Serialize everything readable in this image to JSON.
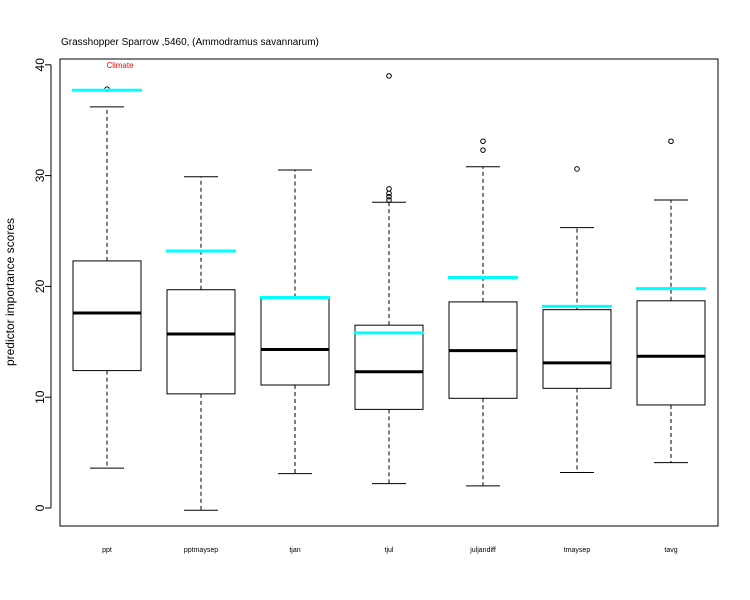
{
  "chart_data": {
    "type": "boxplot",
    "title": "Grasshopper Sparrow ,5460, (Ammodramus savannarum)",
    "xlabel": "",
    "ylabel": "predictor importance scores",
    "ylim": [
      -1.5,
      41.5
    ],
    "yticks": [
      0,
      10,
      20,
      30,
      40
    ],
    "annotation": {
      "text": "Climate",
      "category": "ppt",
      "y": 40,
      "color": "#ff0000"
    },
    "reference_color": "#00ffff",
    "grid": false,
    "categories": [
      "ppt",
      "pptmaysep",
      "tjan",
      "tjul",
      "juljandiff",
      "tmaysep",
      "tavg"
    ],
    "boxes": [
      {
        "name": "ppt",
        "min": 3.6,
        "q1": 12.4,
        "median": 17.6,
        "q3": 22.3,
        "max": 36.2,
        "outliers": [
          37.8
        ],
        "reference": 37.7
      },
      {
        "name": "pptmaysep",
        "min": -0.2,
        "q1": 10.3,
        "median": 15.7,
        "q3": 19.7,
        "max": 29.9,
        "outliers": [],
        "reference": 23.2
      },
      {
        "name": "tjan",
        "min": 3.1,
        "q1": 11.1,
        "median": 14.3,
        "q3": 19.0,
        "max": 30.5,
        "outliers": [],
        "reference": 19.0
      },
      {
        "name": "tjul",
        "min": 2.2,
        "q1": 8.9,
        "median": 12.3,
        "q3": 16.5,
        "max": 27.6,
        "outliers": [
          39.0,
          28.8,
          28.4,
          28.1,
          27.8
        ],
        "reference": 15.8
      },
      {
        "name": "juljandiff",
        "min": 2.0,
        "q1": 9.9,
        "median": 14.2,
        "q3": 18.6,
        "max": 30.8,
        "outliers": [
          33.1,
          32.3
        ],
        "reference": 20.8
      },
      {
        "name": "tmaysep",
        "min": 3.2,
        "q1": 10.8,
        "median": 13.1,
        "q3": 17.9,
        "max": 25.3,
        "outliers": [
          30.6
        ],
        "reference": 18.2
      },
      {
        "name": "tavg",
        "min": 4.1,
        "q1": 9.3,
        "median": 13.7,
        "q3": 18.7,
        "max": 27.8,
        "outliers": [
          33.1
        ],
        "reference": 19.8
      }
    ]
  }
}
